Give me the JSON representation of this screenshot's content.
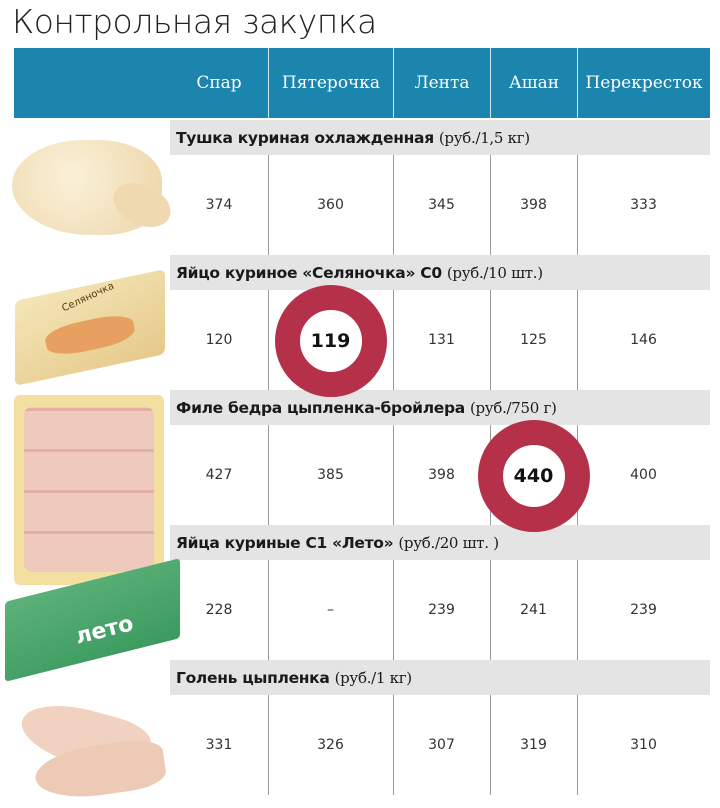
{
  "title": "Контрольная закупка",
  "columns": [
    "Спар",
    "Пятерочка",
    "Лента",
    "Ашан",
    "Перекресток"
  ],
  "highlight_color": "#b5314a",
  "header_color": "#1c85ad",
  "products": [
    {
      "name": "Тушка куриная охлажденная",
      "unit": "(руб./1,5 кг)",
      "prices": [
        "374",
        "360",
        "345",
        "398",
        "333"
      ],
      "highlight": null
    },
    {
      "name": "Яйцо куриное «Селяночка» С0",
      "unit": "(руб./10 шт.)",
      "prices": [
        "120",
        "119",
        "131",
        "125",
        "146"
      ],
      "highlight": 1
    },
    {
      "name": "Филе бедра цыпленка-бройлера",
      "unit": "(руб./750 г)",
      "prices": [
        "427",
        "385",
        "398",
        "440",
        "400"
      ],
      "highlight": 3
    },
    {
      "name": "Яйца куриные С1 «Лето»",
      "unit": "(руб./20 шт. )",
      "prices": [
        "228",
        "–",
        "239",
        "241",
        "239"
      ],
      "highlight": null
    },
    {
      "name": "Голень цыпленка",
      "unit": "(руб./1 кг)",
      "prices": [
        "331",
        "326",
        "307",
        "319",
        "310"
      ],
      "highlight": null
    }
  ],
  "images": {
    "egg_brand_1": "Селяночка",
    "egg_brand_2": "лето"
  }
}
